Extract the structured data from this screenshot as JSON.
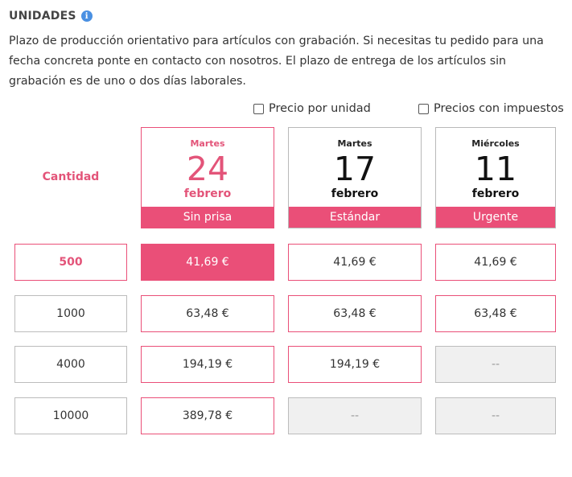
{
  "header": {
    "title": "UNIDADES",
    "info_icon": "info-icon"
  },
  "description": "Plazo de producción orientativo para artículos con grabación. Si necesitas tu pedido para una fecha concreta ponte en contacto con nosotros. El plazo de entrega de los artículos sin grabación es de uno o dos días laborales.",
  "options": {
    "per_unit": {
      "label": "Precio por unidad",
      "checked": false
    },
    "with_tax": {
      "label": "Precios con impuestos",
      "checked": false
    }
  },
  "table": {
    "quantity_label": "Cantidad",
    "columns": [
      {
        "day": "Martes",
        "number": "24",
        "month": "febrero",
        "band": "Sin prisa"
      },
      {
        "day": "Martes",
        "number": "17",
        "month": "febrero",
        "band": "Estándar"
      },
      {
        "day": "Miércoles",
        "number": "11",
        "month": "febrero",
        "band": "Urgente"
      }
    ],
    "rows": [
      {
        "qty": "500",
        "prices": [
          "41,69 €",
          "41,69 €",
          "41,69 €"
        ]
      },
      {
        "qty": "1000",
        "prices": [
          "63,48 €",
          "63,48 €",
          "63,48 €"
        ]
      },
      {
        "qty": "4000",
        "prices": [
          "194,19 €",
          "194,19 €",
          "--"
        ]
      },
      {
        "qty": "10000",
        "prices": [
          "389,78 €",
          "--",
          "--"
        ]
      }
    ]
  },
  "colors": {
    "accent": "#ea4f78",
    "accent_text": "#e35479",
    "info": "#4a90e2",
    "disabled_bg": "#f0f0f0"
  }
}
